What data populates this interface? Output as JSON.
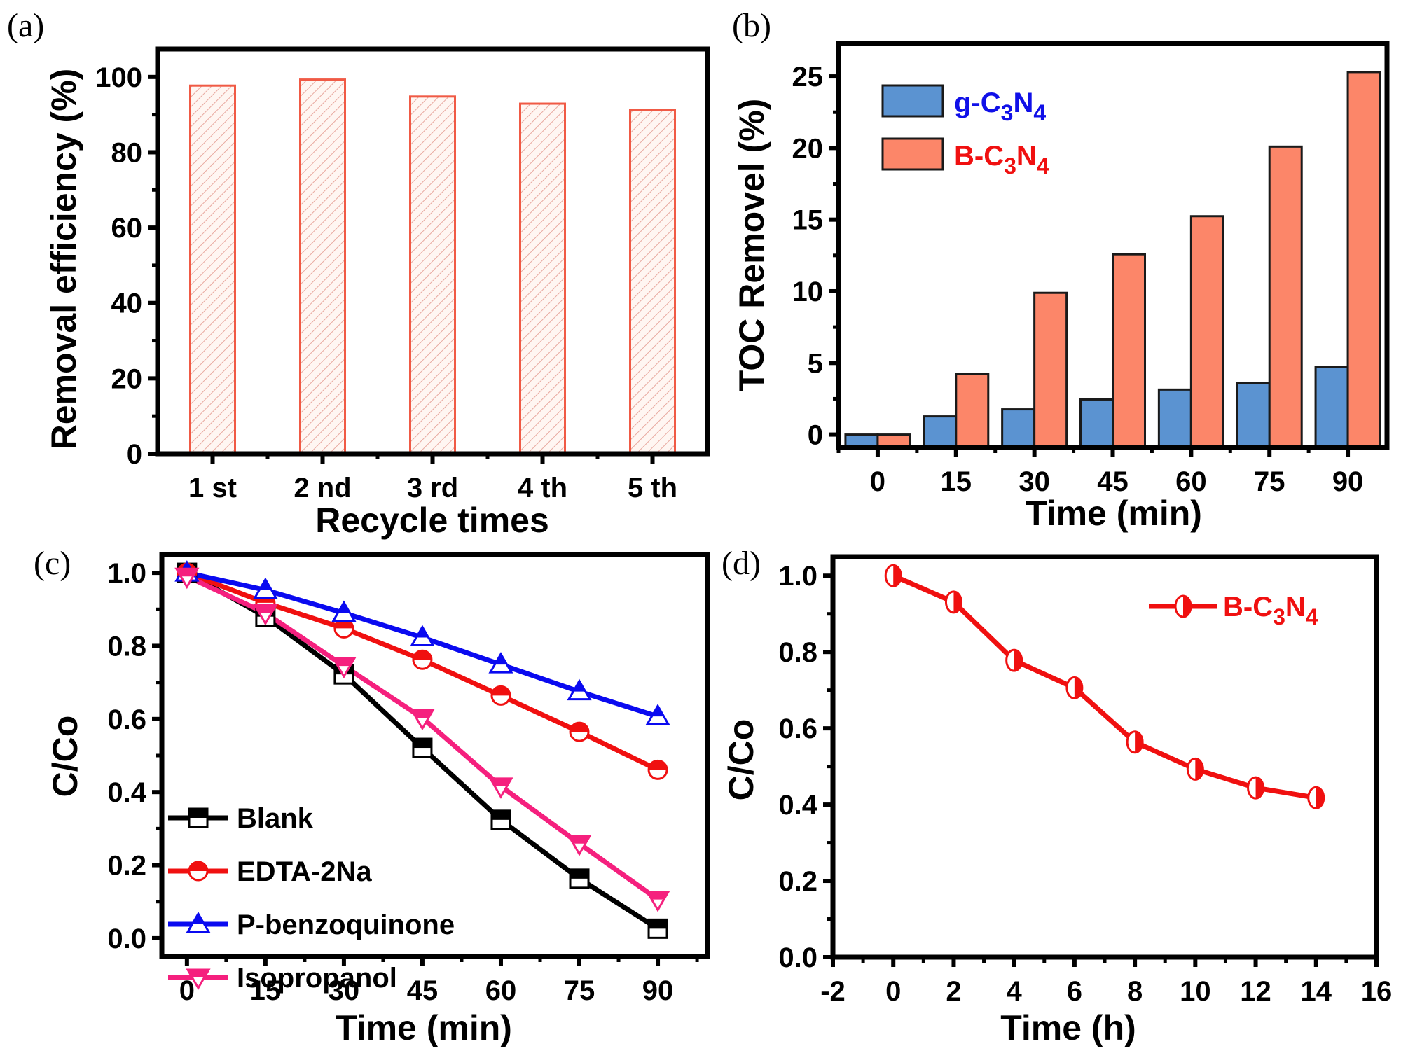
{
  "figure": {
    "panel_labels": [
      "(a)",
      "(b)",
      "(c)",
      "(d)"
    ]
  },
  "chart_data": [
    {
      "panel": "(a)",
      "type": "bar",
      "title": "",
      "xlabel": "Recycle times",
      "ylabel": "Removal efficiency (%)",
      "categories": [
        "1 st",
        "2 nd",
        "3 rd",
        "4 th",
        "5 th"
      ],
      "values": [
        97.7,
        99.3,
        94.8,
        92.9,
        91.2
      ],
      "ylim": [
        0,
        107.4
      ],
      "yticks": [
        0,
        20,
        40,
        60,
        80,
        100
      ],
      "ytick_labels": [
        "0",
        "20",
        "40",
        "60",
        "80",
        "100"
      ],
      "grid": false,
      "bar_style": "hatched",
      "colors": {
        "bar_edge": "#f05a45",
        "hatch": "#e8a9a0",
        "bar_fill": "#fff6f2"
      }
    },
    {
      "panel": "(b)",
      "type": "bar",
      "title": "",
      "xlabel": "Time (min)",
      "ylabel": "TOC Removel (%)",
      "categories": [
        "0",
        "15",
        "30",
        "45",
        "60",
        "75",
        "90"
      ],
      "series": [
        {
          "name": "g-C3N4",
          "label_parts": [
            "g-C",
            "3",
            "N",
            "4"
          ],
          "values": [
            0,
            1.27,
            1.76,
            2.45,
            3.14,
            3.59,
            4.74
          ],
          "color": "#5b93d1",
          "text_color": "#1010e8"
        },
        {
          "name": "B-C3N4",
          "label_parts": [
            "B-C",
            "3",
            "N",
            "4"
          ],
          "values": [
            0,
            4.22,
            9.89,
            12.58,
            15.24,
            20.1,
            25.3
          ],
          "color": "#fc8669",
          "text_color": "#f01010"
        }
      ],
      "ylim": [
        -0.9,
        27.3
      ],
      "yticks": [
        0,
        5,
        10,
        15,
        20,
        25
      ],
      "ytick_labels": [
        "0",
        "5",
        "10",
        "15",
        "20",
        "25"
      ],
      "legend": "top-left",
      "grid": false
    },
    {
      "panel": "(c)",
      "type": "line",
      "title": "",
      "xlabel": "Time (min)",
      "ylabel": "C/Co",
      "x": [
        0,
        15,
        30,
        45,
        60,
        75,
        90
      ],
      "series": [
        {
          "name": "Blank",
          "values": [
            1.0,
            0.88,
            0.722,
            0.521,
            0.324,
            0.163,
            0.026
          ],
          "color": "#000000",
          "marker": "square"
        },
        {
          "name": "EDTA-2Na",
          "values": [
            1.0,
            0.918,
            0.848,
            0.762,
            0.664,
            0.565,
            0.461
          ],
          "color": "#f01010",
          "marker": "circle"
        },
        {
          "name": "P-benzoquinone",
          "values": [
            1.0,
            0.953,
            0.89,
            0.823,
            0.749,
            0.675,
            0.607
          ],
          "color": "#0a0af0",
          "marker": "triangle-up"
        },
        {
          "name": "Isopropanol",
          "values": [
            0.99,
            0.89,
            0.745,
            0.603,
            0.416,
            0.259,
            0.106
          ],
          "color": "#f5207e",
          "marker": "triangle-down"
        }
      ],
      "xlim": [
        -4.8,
        99.5
      ],
      "ylim": [
        -0.05,
        1.05
      ],
      "xticks": [
        0,
        15,
        30,
        45,
        60,
        75,
        90
      ],
      "xtick_labels": [
        "0",
        "15",
        "30",
        "45",
        "60",
        "75",
        "90"
      ],
      "yticks": [
        0.0,
        0.2,
        0.4,
        0.6,
        0.8,
        1.0
      ],
      "ytick_labels": [
        "0.0",
        "0.2",
        "0.4",
        "0.6",
        "0.8",
        "1.0"
      ],
      "legend": "bottom-left",
      "grid": false
    },
    {
      "panel": "(d)",
      "type": "line",
      "title": "",
      "xlabel": "Time (h)",
      "ylabel": "C/Co",
      "x": [
        0,
        2,
        4,
        6,
        8,
        10,
        12,
        14
      ],
      "series": [
        {
          "name": "B-C3N4",
          "label_parts": [
            "B-C",
            "3",
            "N",
            "4"
          ],
          "values": [
            1.0,
            0.931,
            0.778,
            0.706,
            0.564,
            0.493,
            0.444,
            0.418
          ],
          "color": "#f01010",
          "marker": "half-filled-circle"
        }
      ],
      "xlim": [
        -2,
        16
      ],
      "ylim": [
        0.0,
        1.05
      ],
      "xticks": [
        -2,
        0,
        2,
        4,
        6,
        8,
        10,
        12,
        14,
        16
      ],
      "xtick_labels": [
        "-2",
        "0",
        "2",
        "4",
        "6",
        "8",
        "10",
        "12",
        "14",
        "16"
      ],
      "yticks": [
        0.0,
        0.2,
        0.4,
        0.6,
        0.8,
        1.0
      ],
      "ytick_labels": [
        "0.0",
        "0.2",
        "0.4",
        "0.6",
        "0.8",
        "1.0"
      ],
      "legend": "top-right",
      "grid": false
    }
  ]
}
